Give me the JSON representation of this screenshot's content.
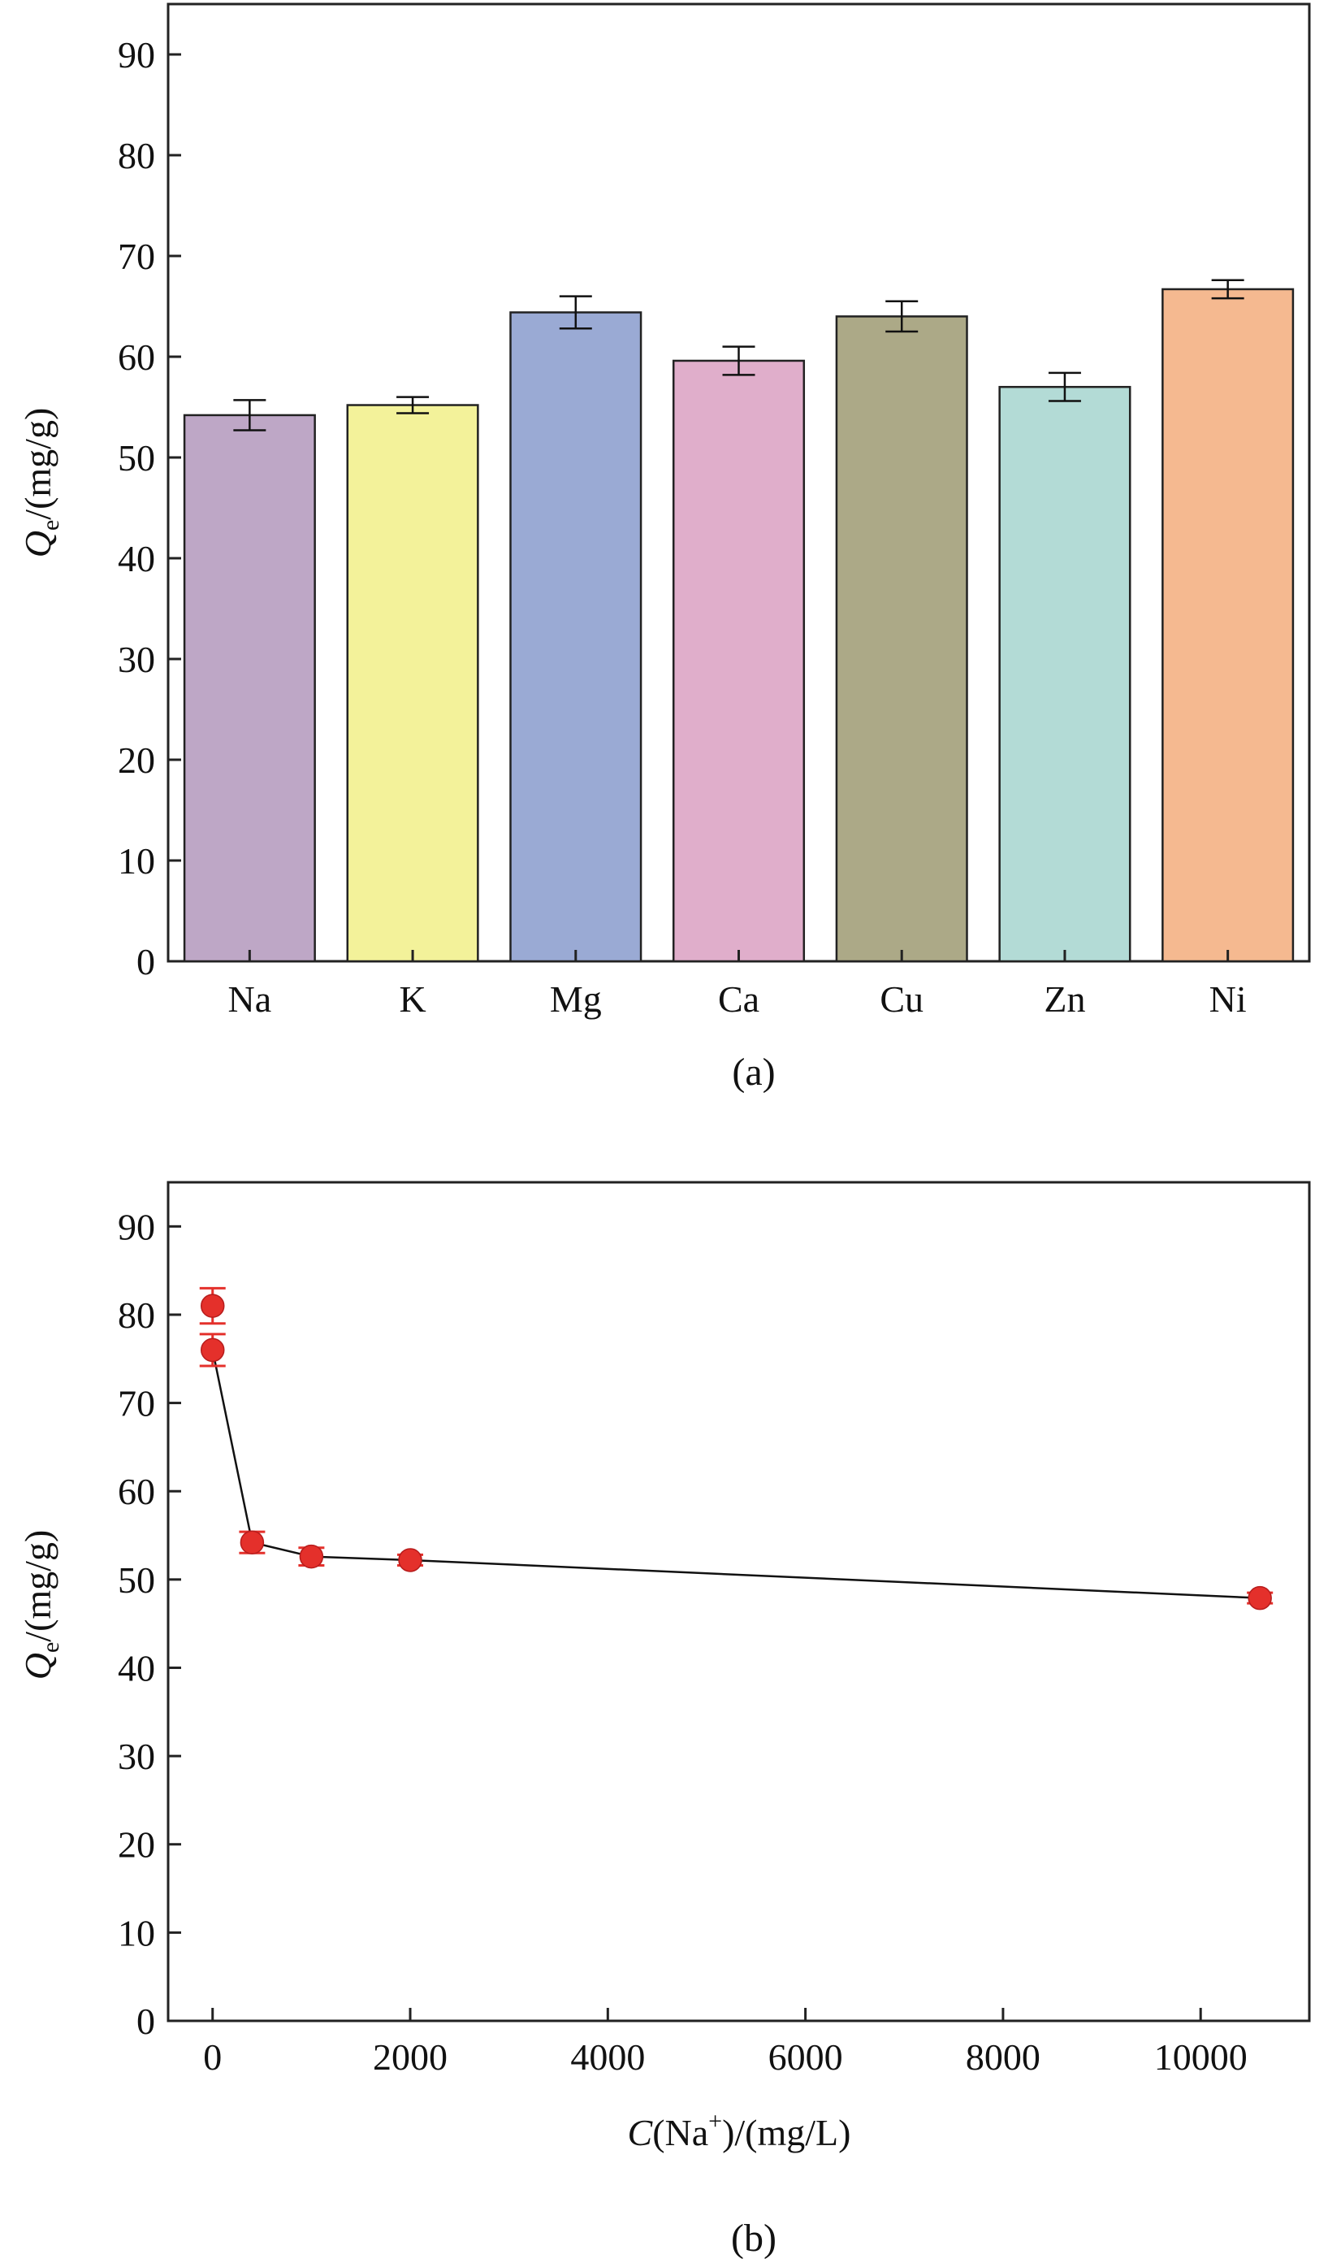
{
  "chart_data": [
    {
      "type": "bar",
      "caption": "(a)",
      "ylabel_main": "Q",
      "ylabel_sub": "e",
      "ylabel_unit": "/(mg/g)",
      "ylim": [
        0,
        95
      ],
      "yticks": [
        0,
        10,
        20,
        30,
        40,
        50,
        60,
        70,
        80,
        90
      ],
      "categories": [
        "Na",
        "K",
        "Mg",
        "Ca",
        "Cu",
        "Zn",
        "Ni"
      ],
      "values": [
        54.2,
        55.2,
        64.4,
        59.6,
        64.0,
        57.0,
        66.7
      ],
      "errors": [
        1.5,
        0.8,
        1.6,
        1.4,
        1.5,
        1.4,
        0.9
      ],
      "colors": [
        "#bea7c6",
        "#f3f29a",
        "#9aaad4",
        "#e0aecb",
        "#aca987",
        "#b3dbd6",
        "#f5b990"
      ]
    },
    {
      "type": "line",
      "caption": "(b)",
      "ylabel_main": "Q",
      "ylabel_sub": "e",
      "ylabel_unit": "/(mg/g)",
      "xlabel_main": "C",
      "xlabel_ion": "(Na",
      "xlabel_sup": "+",
      "xlabel_unit": ")/(mg/L)",
      "xlim": [
        -450,
        11100
      ],
      "ylim": [
        0,
        95
      ],
      "xticks": [
        0,
        2000,
        4000,
        6000,
        8000,
        10000
      ],
      "yticks": [
        0,
        10,
        20,
        30,
        40,
        50,
        60,
        70,
        80,
        90
      ],
      "x": [
        0,
        0,
        400,
        1000,
        2000,
        10600
      ],
      "y": [
        81.0,
        76.0,
        54.2,
        52.6,
        52.2,
        47.9
      ],
      "errors": [
        2.0,
        1.8,
        1.2,
        1.0,
        0.6,
        0.6
      ],
      "point_color": "#e4302b",
      "line_color": "#111111"
    }
  ]
}
